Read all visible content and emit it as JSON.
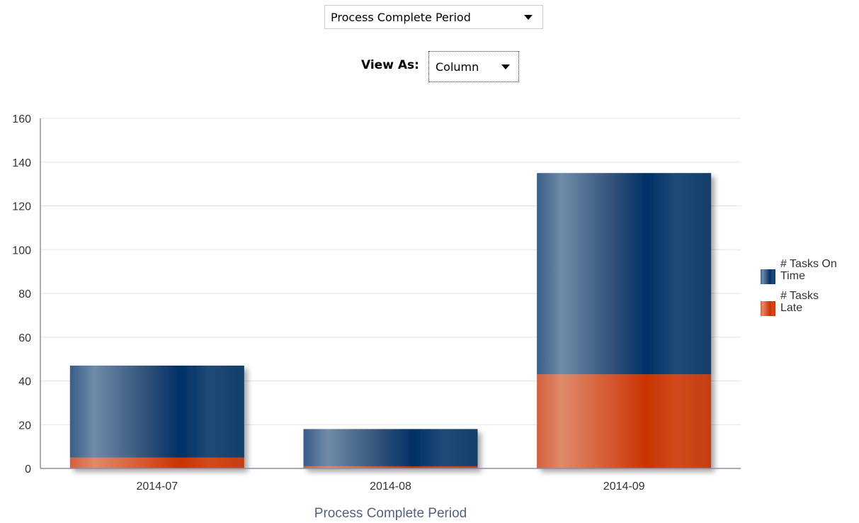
{
  "controls": {
    "period_select_value": "Process Complete Period",
    "view_as_label": "View As:",
    "view_as_value": "Column"
  },
  "colors": {
    "on_time": "#1f4e7a",
    "late": "#d34a1c",
    "grid": "#e3e3e3",
    "axis": "#8b8fa8",
    "axis_title": "#55607c"
  },
  "chart_data": {
    "type": "bar",
    "stacked": true,
    "categories": [
      "2014-07",
      "2014-08",
      "2014-09"
    ],
    "series": [
      {
        "name": "# Tasks Late",
        "values": [
          5,
          1,
          43
        ],
        "color": "#d34a1c"
      },
      {
        "name": "# Tasks On Time",
        "values": [
          42,
          17,
          92
        ],
        "color": "#1f4e7a"
      }
    ],
    "xlabel": "Process Complete Period",
    "ylabel": "",
    "ylim": [
      0,
      160
    ],
    "yticks": [
      0,
      20,
      40,
      60,
      80,
      100,
      120,
      140,
      160
    ],
    "grid": true,
    "legend_position": "right",
    "legend": [
      "# Tasks On Time",
      "# Tasks Late"
    ]
  }
}
